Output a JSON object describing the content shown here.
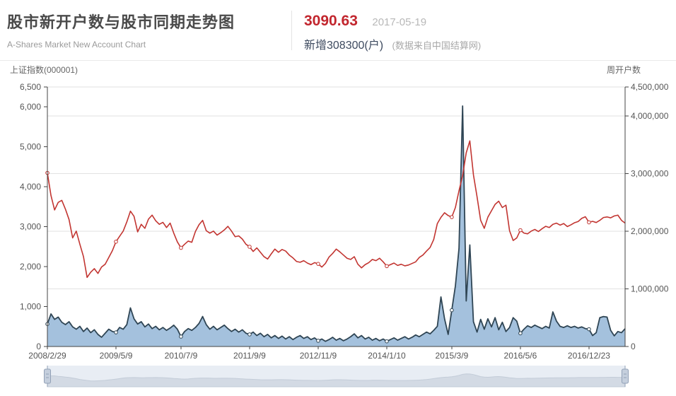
{
  "header": {
    "title": "股市新开户数与股市同期走势图",
    "subtitle": "A-Shares Market New Account Chart",
    "price": "3090.63",
    "date": "2017-05-19",
    "new_accounts": "新增308300(户)",
    "source_note": "(数据来自中国结算网)"
  },
  "colors": {
    "price_red": "#c2262e",
    "index_line": "#c23531",
    "accounts_line": "#2f4554",
    "accounts_fill": "#a4c1dd",
    "grid": "#e2e2e2",
    "axis": "#444444",
    "tick_label": "#555555",
    "navigator_bg": "#e8edf4",
    "navigator_fill": "#d3dae4",
    "navigator_stroke": "#c3ccd8",
    "handle_fill": "#c5cfdd",
    "handle_stroke": "#91a0b6"
  },
  "chart_data": {
    "type": "line+area",
    "title": "股市新开户数与股市同期走势图",
    "grid": true,
    "legend_position": "none",
    "left_axis": {
      "title": "上证指数(000001)",
      "min": 0,
      "max": 6500,
      "ticks": [
        {
          "value": 0,
          "label": "0"
        },
        {
          "value": 1000,
          "label": "1,000"
        },
        {
          "value": 2000,
          "label": "2,000"
        },
        {
          "value": 3000,
          "label": "3,000"
        },
        {
          "value": 4000,
          "label": "4,000"
        },
        {
          "value": 5000,
          "label": "5,000"
        },
        {
          "value": 6000,
          "label": "6,000"
        },
        {
          "value": 6500,
          "label": "6,500"
        }
      ]
    },
    "right_axis": {
      "title": "周开户数",
      "min": 0,
      "max": 4500000,
      "ticks": [
        {
          "value": 0,
          "label": "0"
        },
        {
          "value": 1000000,
          "label": "1,000,000"
        },
        {
          "value": 2000000,
          "label": "2,000,000"
        },
        {
          "value": 3000000,
          "label": "3,000,000"
        },
        {
          "value": 4000000,
          "label": "4,000,000"
        },
        {
          "value": 4500000,
          "label": "4,500,000"
        }
      ]
    },
    "x_axis": {
      "tick_labels": [
        "2008/2/29",
        "2009/5/9",
        "2010/7/9",
        "2011/9/9",
        "2012/11/9",
        "2014/1/10",
        "2015/3/9",
        "2016/5/6",
        "2016/12/23"
      ],
      "tick_indices": [
        0,
        19,
        37,
        56,
        75,
        94,
        112,
        131,
        150
      ]
    },
    "series": [
      {
        "name": "上证指数",
        "type": "line",
        "axis": "left",
        "color": "#c23531",
        "values": [
          4348,
          3780,
          3420,
          3610,
          3660,
          3440,
          3180,
          2720,
          2890,
          2560,
          2250,
          1730,
          1860,
          1950,
          1830,
          1990,
          2060,
          2230,
          2400,
          2625,
          2760,
          2890,
          3120,
          3390,
          3260,
          2870,
          3060,
          2960,
          3190,
          3290,
          3150,
          3060,
          3110,
          2980,
          3090,
          2840,
          2620,
          2471,
          2560,
          2640,
          2610,
          2880,
          3050,
          3160,
          2900,
          2840,
          2890,
          2790,
          2850,
          2920,
          3010,
          2890,
          2750,
          2770,
          2690,
          2560,
          2498,
          2380,
          2470,
          2360,
          2250,
          2190,
          2320,
          2440,
          2360,
          2430,
          2390,
          2290,
          2220,
          2130,
          2110,
          2150,
          2090,
          2050,
          2100,
          2069,
          1990,
          2080,
          2240,
          2330,
          2440,
          2370,
          2290,
          2210,
          2180,
          2250,
          2060,
          1970,
          2050,
          2100,
          2180,
          2150,
          2210,
          2120,
          2013,
          2050,
          2090,
          2030,
          2060,
          2020,
          2040,
          2080,
          2120,
          2230,
          2290,
          2390,
          2480,
          2680,
          3080,
          3235,
          3350,
          3280,
          3241,
          3480,
          3900,
          4280,
          4850,
          5150,
          4300,
          3750,
          3160,
          2960,
          3240,
          3400,
          3560,
          3640,
          3480,
          3540,
          2900,
          2655,
          2720,
          2913,
          2840,
          2822,
          2890,
          2932,
          2880,
          2950,
          3010,
          2980,
          3060,
          3090,
          3040,
          3080,
          3004,
          3048,
          3100,
          3130,
          3210,
          3250,
          3110,
          3135,
          3105,
          3160,
          3230,
          3245,
          3222,
          3270,
          3290,
          3160,
          3091
        ]
      },
      {
        "name": "周开户数",
        "type": "area",
        "axis": "right",
        "color": "#2f4554",
        "fill": "#a4c1dd",
        "values": [
          390000,
          565000,
          470000,
          510000,
          420000,
          380000,
          430000,
          340000,
          300000,
          350000,
          260000,
          320000,
          240000,
          290000,
          210000,
          160000,
          230000,
          300000,
          260000,
          245000,
          330000,
          300000,
          380000,
          670000,
          480000,
          390000,
          430000,
          340000,
          390000,
          310000,
          350000,
          290000,
          330000,
          280000,
          320000,
          370000,
          300000,
          172000,
          260000,
          310000,
          280000,
          330000,
          400000,
          520000,
          380000,
          300000,
          350000,
          290000,
          330000,
          370000,
          310000,
          260000,
          300000,
          250000,
          290000,
          230000,
          210000,
          250000,
          190000,
          230000,
          170000,
          210000,
          150000,
          190000,
          140000,
          180000,
          130000,
          170000,
          120000,
          160000,
          190000,
          140000,
          170000,
          120000,
          150000,
          100000,
          130000,
          90000,
          120000,
          160000,
          110000,
          140000,
          100000,
          130000,
          170000,
          220000,
          150000,
          190000,
          130000,
          160000,
          110000,
          140000,
          100000,
          130000,
          90000,
          120000,
          150000,
          110000,
          140000,
          170000,
          130000,
          160000,
          200000,
          170000,
          210000,
          250000,
          220000,
          280000,
          350000,
          860000,
          480000,
          210000,
          630000,
          1050000,
          1700000,
          4170000,
          790000,
          1760000,
          430000,
          250000,
          470000,
          300000,
          480000,
          340000,
          500000,
          290000,
          420000,
          260000,
          330000,
          500000,
          440000,
          230000,
          300000,
          360000,
          330000,
          370000,
          340000,
          310000,
          350000,
          320000,
          600000,
          440000,
          350000,
          330000,
          360000,
          330000,
          350000,
          320000,
          340000,
          310000,
          300000,
          190000,
          240000,
          500000,
          520000,
          510000,
          280000,
          185000,
          260000,
          240000,
          308300
        ]
      }
    ]
  }
}
